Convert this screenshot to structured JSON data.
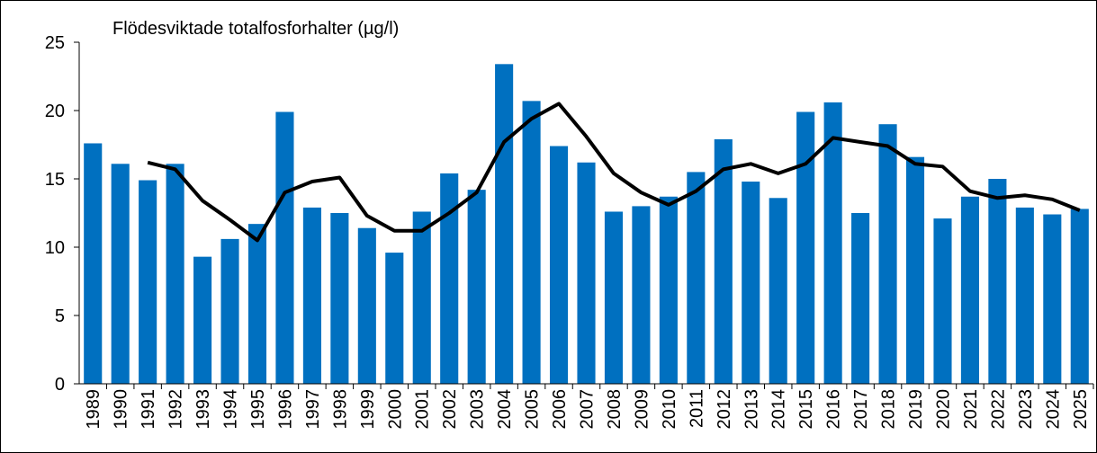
{
  "chart_data": {
    "type": "bar_line",
    "title": "Flödesviktade totalfosforhalter (µg/l)",
    "categories": [
      "1989",
      "1990",
      "1991",
      "1992",
      "1993",
      "1994",
      "1995",
      "1996",
      "1997",
      "1998",
      "1999",
      "2000",
      "2001",
      "2002",
      "2003",
      "2004",
      "2005",
      "2006",
      "2007",
      "2008",
      "2009",
      "2010",
      "2011",
      "2012",
      "2013",
      "2014",
      "2015",
      "2016",
      "2017",
      "2018",
      "2019",
      "2020",
      "2021",
      "2022",
      "2023",
      "2024",
      "2025"
    ],
    "series": [
      {
        "type": "bar",
        "color": "#0070c0",
        "values": [
          17.6,
          16.1,
          14.9,
          16.1,
          9.3,
          10.6,
          11.7,
          19.9,
          12.9,
          12.5,
          11.4,
          9.6,
          12.6,
          15.4,
          14.2,
          23.4,
          20.7,
          17.4,
          16.2,
          12.6,
          13.0,
          13.7,
          15.5,
          17.9,
          14.8,
          13.6,
          19.9,
          20.6,
          12.5,
          19.0,
          16.6,
          12.1,
          13.7,
          15.0,
          12.9,
          12.4,
          12.8
        ]
      },
      {
        "type": "line",
        "color": "#000000",
        "values": [
          null,
          null,
          16.2,
          15.7,
          13.4,
          12.0,
          10.5,
          14.0,
          14.8,
          15.1,
          12.3,
          11.2,
          11.2,
          12.5,
          14.0,
          17.7,
          19.4,
          20.5,
          18.1,
          15.4,
          14.0,
          13.1,
          14.1,
          15.7,
          16.1,
          15.4,
          16.1,
          18.0,
          17.7,
          17.4,
          16.1,
          15.9,
          14.1,
          13.6,
          13.8,
          13.5,
          12.7
        ]
      }
    ],
    "ylim": [
      0,
      25
    ],
    "yticks": [
      0,
      5,
      10,
      15,
      20,
      25
    ],
    "grid": false
  }
}
